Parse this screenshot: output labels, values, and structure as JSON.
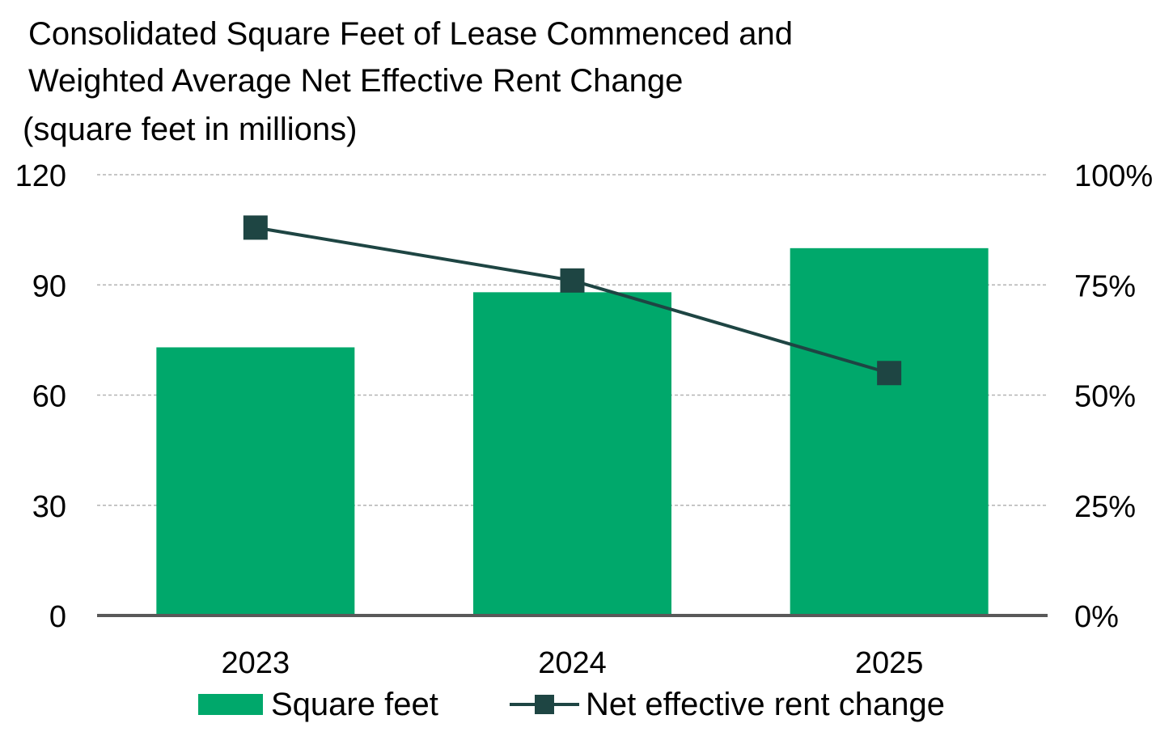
{
  "colors": {
    "bar": "#00a86b",
    "line": "#1e4543",
    "grid": "#b3b3b3",
    "axis": "#595959"
  },
  "chart_data": {
    "type": "bar",
    "title_lines": [
      "Consolidated Square Feet of Lease Commenced and",
      "Weighted Average Net Effective Rent Change",
      "(square feet in millions)"
    ],
    "categories": [
      "2023",
      "2024",
      "2025"
    ],
    "series": [
      {
        "name": "Square feet",
        "type": "bar",
        "axis": "left",
        "values": [
          73,
          88,
          100
        ]
      },
      {
        "name": "Net effective rent change",
        "type": "line",
        "axis": "right",
        "values": [
          88,
          76,
          55
        ]
      }
    ],
    "y_left": {
      "min": 0,
      "max": 120,
      "ticks": [
        "0",
        "30",
        "60",
        "90",
        "120"
      ]
    },
    "y_right": {
      "min": 0,
      "max": 100,
      "ticks": [
        "0%",
        "25%",
        "50%",
        "75%",
        "100%"
      ]
    },
    "grid": true,
    "legend_position": "bottom"
  }
}
